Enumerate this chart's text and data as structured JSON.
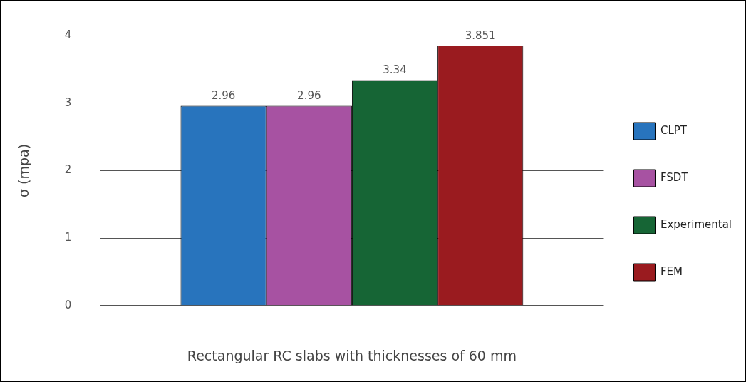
{
  "chart_data": {
    "type": "bar",
    "xlabel": "Rectangular RC slabs with thicknesses of 60 mm",
    "ylabel": "σ (mpa)",
    "categories": [
      null
    ],
    "series": [
      {
        "name": "CLPT",
        "color": "#2874bd",
        "values": [
          2.96
        ]
      },
      {
        "name": "FSDT",
        "color": "#a752a2",
        "values": [
          2.96
        ]
      },
      {
        "name": "Experimental",
        "color": "#166535",
        "values": [
          3.34
        ]
      },
      {
        "name": "FEM",
        "color": "#9a1b1f",
        "values": [
          3.851
        ]
      }
    ],
    "ylim": [
      0,
      4
    ],
    "yticks": [
      0,
      1,
      2,
      3,
      4
    ],
    "grid": "y",
    "legend": "right",
    "data_labels": true
  }
}
